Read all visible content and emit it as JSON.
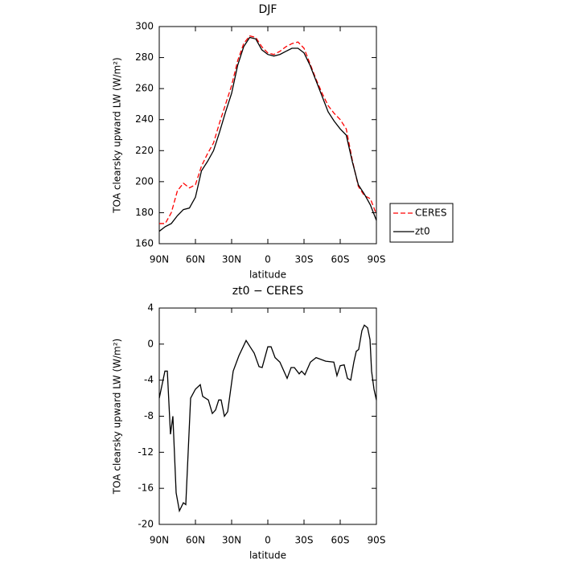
{
  "chart_data": [
    {
      "type": "line",
      "title": "DJF",
      "xlabel": "latitude",
      "ylabel": "TOA clearsky upward LW (W/m²)",
      "x": [
        90,
        85,
        80,
        75,
        70,
        65,
        60,
        55,
        50,
        45,
        40,
        35,
        30,
        25,
        20,
        15,
        10,
        5,
        0,
        -5,
        -10,
        -15,
        -20,
        -25,
        -30,
        -35,
        -40,
        -45,
        -50,
        -55,
        -60,
        -65,
        -70,
        -75,
        -80,
        -85,
        -90
      ],
      "series": [
        {
          "name": "CERES",
          "color": "#ff0000",
          "dashed": true,
          "values": [
            173,
            173,
            180,
            194,
            199,
            196,
            198,
            210,
            218,
            225,
            238,
            250,
            262,
            278,
            289,
            294,
            293,
            287,
            283,
            282,
            284,
            287,
            289,
            290,
            286,
            276,
            266,
            257,
            249,
            244,
            240,
            234,
            214,
            197,
            191,
            189,
            179
          ]
        },
        {
          "name": "zt0",
          "color": "#000000",
          "dashed": false,
          "values": [
            168,
            171,
            173,
            178,
            182,
            183,
            190,
            207,
            213,
            220,
            232,
            245,
            257,
            275,
            287,
            293,
            292,
            285,
            282,
            281,
            282,
            284,
            286,
            286,
            283,
            275,
            265,
            255,
            245,
            239,
            234,
            230,
            213,
            198,
            192,
            185,
            175
          ]
        }
      ],
      "legend": "right",
      "xlim": [
        90,
        -90
      ],
      "xticks": [
        {
          "value": 90,
          "label": "90N"
        },
        {
          "value": 60,
          "label": "60N"
        },
        {
          "value": 30,
          "label": "30N"
        },
        0,
        {
          "value": -30,
          "label": "30S"
        },
        {
          "value": -60,
          "label": "60S"
        },
        {
          "value": -90,
          "label": "90S"
        }
      ],
      "ylim": [
        160,
        300
      ],
      "yticks": [
        160,
        180,
        200,
        220,
        240,
        260,
        280,
        300
      ]
    },
    {
      "type": "line",
      "title": "zt0 − CERES",
      "xlabel": "latitude",
      "ylabel": "TOA clearsky upward LW (W/m²)",
      "x": [
        90,
        85.3,
        83.3,
        80.7,
        78.7,
        76,
        73.3,
        70,
        68,
        64,
        60,
        56,
        54,
        49.3,
        46,
        43.3,
        40.7,
        38.7,
        36,
        33.3,
        28.7,
        24,
        18,
        14.7,
        11.3,
        7.3,
        4.7,
        0,
        -2.7,
        -6,
        -10,
        -16,
        -19.3,
        -22,
        -26,
        -28,
        -30.7,
        -35.3,
        -40,
        -48,
        -54.7,
        -57.3,
        -60,
        -63.3,
        -66,
        -68.7,
        -71.3,
        -73.3,
        -75.3,
        -78,
        -80,
        -82.7,
        -84.7,
        -86,
        -88,
        -90
      ],
      "values": [
        -6,
        -3,
        -3,
        -10,
        -8,
        -16.5,
        -18.5,
        -17.6,
        -17.8,
        -6,
        -5,
        -4.5,
        -5.8,
        -6.2,
        -7.7,
        -7.3,
        -6.2,
        -6.2,
        -8,
        -7.5,
        -3,
        -1.3,
        0.4,
        -0.3,
        -1,
        -2.5,
        -2.6,
        -0.3,
        -0.3,
        -1.5,
        -2,
        -3.8,
        -2.6,
        -2.6,
        -3.3,
        -3,
        -3.4,
        -2,
        -1.5,
        -1.9,
        -2,
        -3.5,
        -2.4,
        -2.3,
        -3.8,
        -4,
        -2,
        -0.8,
        -0.6,
        1.5,
        2.1,
        1.8,
        0.5,
        -3,
        -5,
        -6.2
      ],
      "color": "#000000",
      "xlim": [
        90,
        -90
      ],
      "xticks": [
        {
          "value": 90,
          "label": "90N"
        },
        {
          "value": 60,
          "label": "60N"
        },
        {
          "value": 30,
          "label": "30N"
        },
        0,
        {
          "value": -30,
          "label": "30S"
        },
        {
          "value": -60,
          "label": "60S"
        },
        {
          "value": -90,
          "label": "90S"
        }
      ],
      "ylim": [
        -20,
        4
      ],
      "yticks": [
        -20,
        -16,
        -12,
        -8,
        -4,
        0,
        4
      ]
    }
  ]
}
